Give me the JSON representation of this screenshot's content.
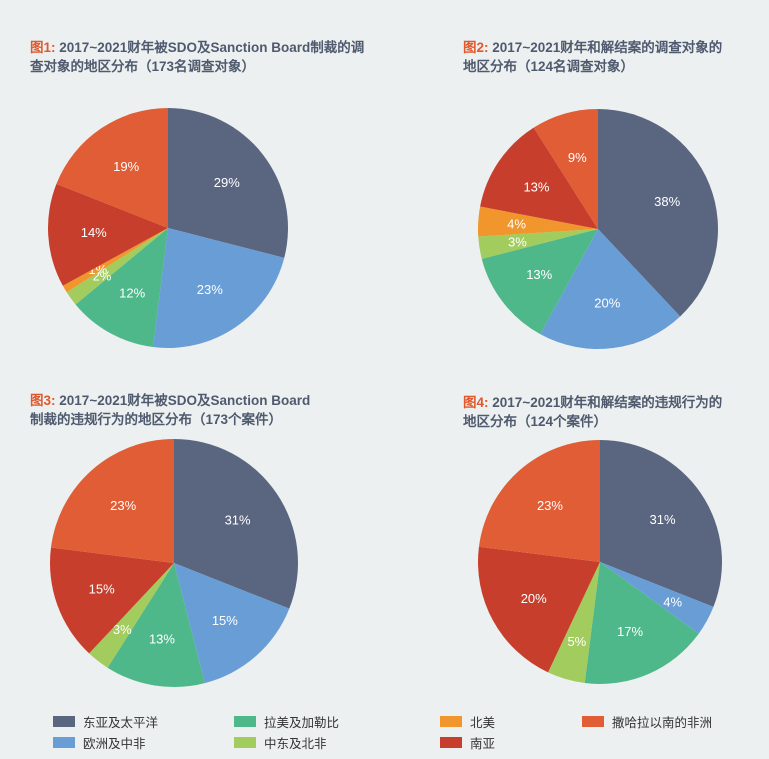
{
  "legend": {
    "items": [
      {
        "label": "东亚及太平洋",
        "color": "#5a6680"
      },
      {
        "label": "欧洲及中非",
        "color": "#689dd6"
      },
      {
        "label": "拉美及加勒比",
        "color": "#4fb88a"
      },
      {
        "label": "中东及北非",
        "color": "#a2cc5e"
      },
      {
        "label": "北美",
        "color": "#f0962c"
      },
      {
        "label": "南亚",
        "color": "#c83e2c"
      },
      {
        "label": "撒哈拉以南的非洲",
        "color": "#e05d35"
      }
    ]
  },
  "chart_data": [
    {
      "type": "pie",
      "fig_label": "图1:",
      "title": "2017~2021财年被SDO及Sanction Board制裁的调查对象的地区分布（173名调查对象）",
      "title_lines": [
        "2017~2021财年被SDO及Sanction Board制裁的调",
        "查对象的地区分布（173名调查对象）"
      ],
      "slices": [
        {
          "category": "东亚及太平洋",
          "value": 29,
          "label": "29%"
        },
        {
          "category": "欧洲及中非",
          "value": 23,
          "label": "23%"
        },
        {
          "category": "拉美及加勒比",
          "value": 12,
          "label": "12%"
        },
        {
          "category": "中东及北非",
          "value": 2,
          "label": "2%"
        },
        {
          "category": "北美",
          "value": 1,
          "label": "1%"
        },
        {
          "category": "南亚",
          "value": 14,
          "label": "14%"
        },
        {
          "category": "撒哈拉以南的非洲",
          "value": 19,
          "label": "19%"
        }
      ]
    },
    {
      "type": "pie",
      "fig_label": "图2:",
      "title": "2017~2021财年和解结案的调查对象的地区分布（124名调查对象）",
      "title_lines": [
        "2017~2021财年和解结案的调查对象的",
        "地区分布（124名调查对象）"
      ],
      "slices": [
        {
          "category": "东亚及太平洋",
          "value": 38,
          "label": "38%"
        },
        {
          "category": "欧洲及中非",
          "value": 20,
          "label": "20%"
        },
        {
          "category": "拉美及加勒比",
          "value": 13,
          "label": "13%"
        },
        {
          "category": "中东及北非",
          "value": 3,
          "label": "3%"
        },
        {
          "category": "北美",
          "value": 4,
          "label": "4%"
        },
        {
          "category": "南亚",
          "value": 13,
          "label": "13%"
        },
        {
          "category": "撒哈拉以南的非洲",
          "value": 9,
          "label": "9%"
        }
      ]
    },
    {
      "type": "pie",
      "fig_label": "图3:",
      "title": "2017~2021财年被SDO及Sanction Board制裁的违规行为的地区分布（173个案件）",
      "title_lines": [
        "2017~2021财年被SDO及Sanction Board",
        "制裁的违规行为的地区分布（173个案件）"
      ],
      "slices": [
        {
          "category": "东亚及太平洋",
          "value": 31,
          "label": "31%"
        },
        {
          "category": "欧洲及中非",
          "value": 15,
          "label": "15%"
        },
        {
          "category": "拉美及加勒比",
          "value": 13,
          "label": "13%"
        },
        {
          "category": "中东及北非",
          "value": 3,
          "label": "3%"
        },
        {
          "category": "南亚",
          "value": 15,
          "label": "15%"
        },
        {
          "category": "撒哈拉以南的非洲",
          "value": 23,
          "label": "23%"
        }
      ]
    },
    {
      "type": "pie",
      "fig_label": "图4:",
      "title": "2017~2021财年和解结案的违规行为的地区分布（124个案件）",
      "title_lines": [
        "2017~2021财年和解结案的违规行为的",
        "地区分布（124个案件）"
      ],
      "slices": [
        {
          "category": "东亚及太平洋",
          "value": 31,
          "label": "31%"
        },
        {
          "category": "欧洲及中非",
          "value": 4,
          "label": "4%"
        },
        {
          "category": "拉美及加勒比",
          "value": 17,
          "label": "17%"
        },
        {
          "category": "中东及北非",
          "value": 5,
          "label": "5%"
        },
        {
          "category": "南亚",
          "value": 20,
          "label": "20%"
        },
        {
          "category": "撒哈拉以南的非洲",
          "value": 23,
          "label": "23%"
        }
      ]
    }
  ]
}
